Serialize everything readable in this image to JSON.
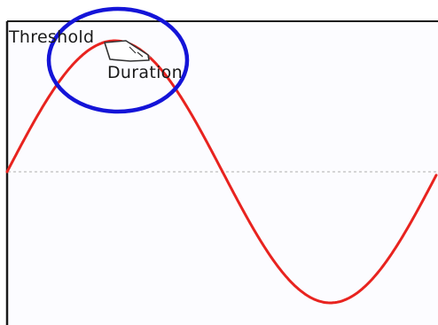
{
  "labels": {
    "threshold": "Threshold",
    "duration": "Duration"
  },
  "colors": {
    "plot_background": "#fcfcff",
    "frame": "#1a1a1a",
    "waveform": "#e8231f",
    "baseline": "#c8c8c8",
    "highlight_circle": "#1414d8",
    "cursor": "#333333"
  },
  "icons": {
    "pointer": "hand-pointer-icon"
  }
}
